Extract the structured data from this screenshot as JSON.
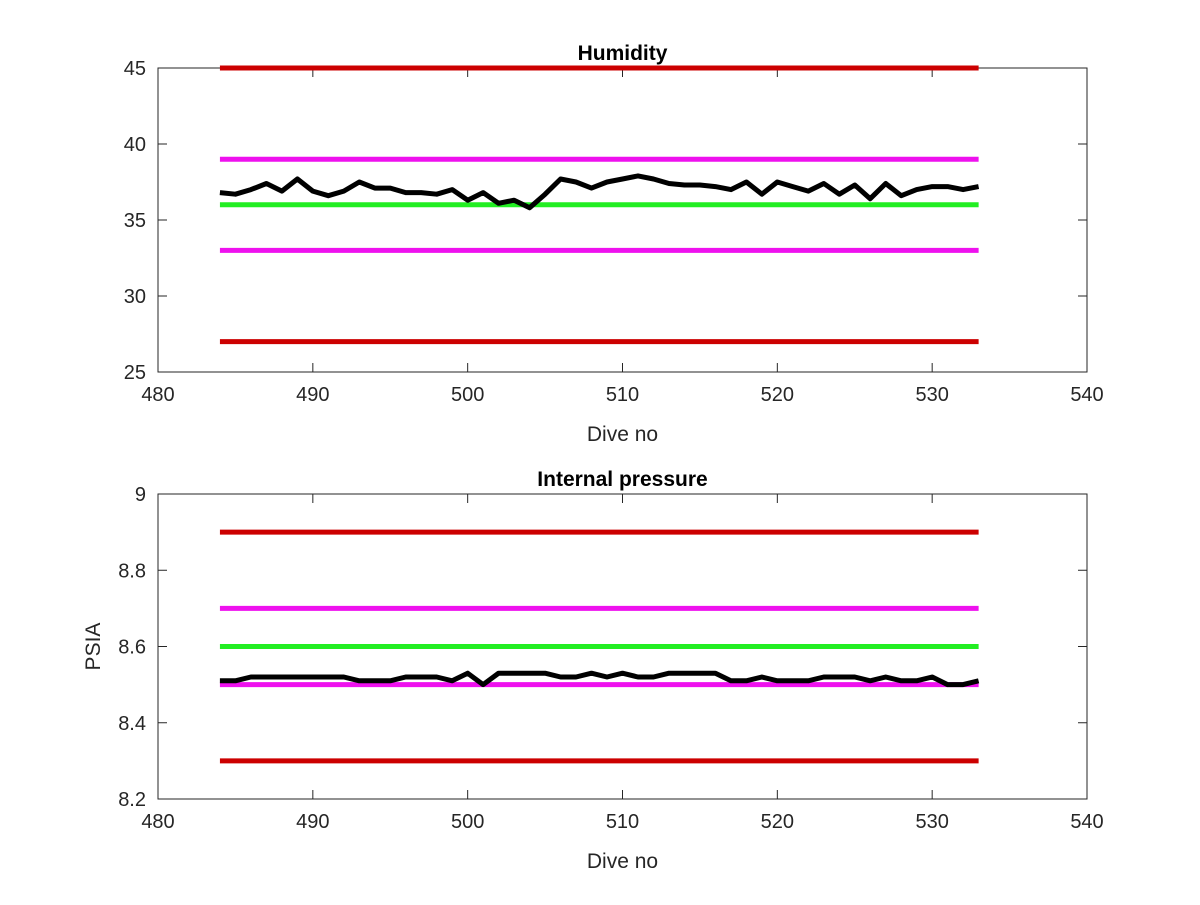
{
  "chart_data": [
    {
      "type": "line",
      "title": "Humidity",
      "xlabel": "Dive no",
      "ylabel": "",
      "xlim": [
        480,
        540
      ],
      "ylim": [
        25,
        45
      ],
      "xticks": [
        "480",
        "490",
        "500",
        "510",
        "520",
        "530",
        "540"
      ],
      "yticks": [
        "25",
        "30",
        "35",
        "40",
        "45"
      ],
      "grid": false,
      "limit_lines": [
        {
          "value": 45,
          "x_range": [
            484,
            533
          ],
          "color": "#cc0000"
        },
        {
          "value": 39,
          "x_range": [
            484,
            533
          ],
          "color": "#ee11ee"
        },
        {
          "value": 36,
          "x_range": [
            484,
            533
          ],
          "color": "#22ee22"
        },
        {
          "value": 33,
          "x_range": [
            484,
            533
          ],
          "color": "#ee11ee"
        },
        {
          "value": 27,
          "x_range": [
            484,
            533
          ],
          "color": "#cc0000"
        }
      ],
      "series": [
        {
          "color": "#000000",
          "x": [
            484,
            485,
            486,
            487,
            488,
            489,
            490,
            491,
            492,
            493,
            494,
            495,
            496,
            497,
            498,
            499,
            500,
            501,
            502,
            503,
            504,
            505,
            506,
            507,
            508,
            509,
            510,
            511,
            512,
            513,
            514,
            515,
            516,
            517,
            518,
            519,
            520,
            521,
            522,
            523,
            524,
            525,
            526,
            527,
            528,
            529,
            530,
            531,
            532,
            533
          ],
          "values": [
            36.8,
            36.7,
            37.0,
            37.4,
            36.9,
            37.7,
            36.9,
            36.6,
            36.9,
            37.5,
            37.1,
            37.1,
            36.8,
            36.8,
            36.7,
            37.0,
            36.3,
            36.8,
            36.1,
            36.3,
            35.8,
            36.7,
            37.7,
            37.5,
            37.1,
            37.5,
            37.7,
            37.9,
            37.7,
            37.4,
            37.3,
            37.3,
            37.2,
            37.0,
            37.5,
            36.7,
            37.5,
            37.2,
            36.9,
            37.4,
            36.7,
            37.3,
            36.4,
            37.4,
            36.6,
            37.0,
            37.2,
            37.2,
            37.0,
            37.2
          ]
        }
      ]
    },
    {
      "type": "line",
      "title": "Internal pressure",
      "xlabel": "Dive no",
      "ylabel": "PSIA",
      "xlim": [
        480,
        540
      ],
      "ylim": [
        8.2,
        9.0
      ],
      "xticks": [
        "480",
        "490",
        "500",
        "510",
        "520",
        "530",
        "540"
      ],
      "yticks": [
        "8.2",
        "8.4",
        "8.6",
        "8.8",
        "9"
      ],
      "grid": false,
      "limit_lines": [
        {
          "value": 8.9,
          "x_range": [
            484,
            533
          ],
          "color": "#cc0000"
        },
        {
          "value": 8.7,
          "x_range": [
            484,
            533
          ],
          "color": "#ee11ee"
        },
        {
          "value": 8.6,
          "x_range": [
            484,
            533
          ],
          "color": "#22ee22"
        },
        {
          "value": 8.5,
          "x_range": [
            484,
            533
          ],
          "color": "#ee11ee"
        },
        {
          "value": 8.3,
          "x_range": [
            484,
            533
          ],
          "color": "#cc0000"
        }
      ],
      "series": [
        {
          "color": "#000000",
          "x": [
            484,
            485,
            486,
            487,
            488,
            489,
            490,
            491,
            492,
            493,
            494,
            495,
            496,
            497,
            498,
            499,
            500,
            501,
            502,
            503,
            504,
            505,
            506,
            507,
            508,
            509,
            510,
            511,
            512,
            513,
            514,
            515,
            516,
            517,
            518,
            519,
            520,
            521,
            522,
            523,
            524,
            525,
            526,
            527,
            528,
            529,
            530,
            531,
            532,
            533
          ],
          "values": [
            8.51,
            8.51,
            8.52,
            8.52,
            8.52,
            8.52,
            8.52,
            8.52,
            8.52,
            8.51,
            8.51,
            8.51,
            8.52,
            8.52,
            8.52,
            8.51,
            8.53,
            8.5,
            8.53,
            8.53,
            8.53,
            8.53,
            8.52,
            8.52,
            8.53,
            8.52,
            8.53,
            8.52,
            8.52,
            8.53,
            8.53,
            8.53,
            8.53,
            8.51,
            8.51,
            8.52,
            8.51,
            8.51,
            8.51,
            8.52,
            8.52,
            8.52,
            8.51,
            8.52,
            8.51,
            8.51,
            8.52,
            8.5,
            8.5,
            8.51
          ]
        }
      ]
    }
  ]
}
